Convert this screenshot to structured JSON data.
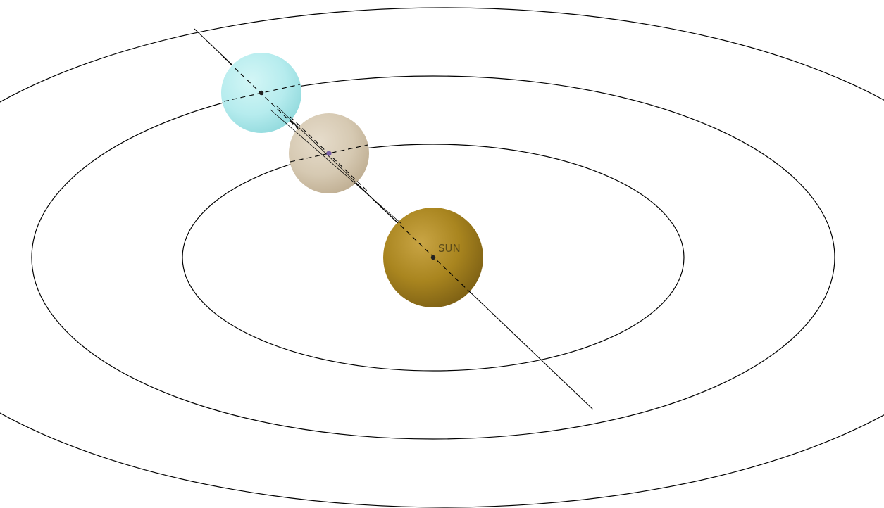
{
  "labels": {
    "sun": "SUN"
  },
  "bodies": [
    {
      "id": "sun",
      "color": "#b08a2a"
    },
    {
      "id": "planet-middle",
      "color": "#d9cdb8"
    },
    {
      "id": "planet-outer",
      "color": "#bfeff0"
    }
  ],
  "orbit_count": 3,
  "center_point_color": "#7a60a8"
}
